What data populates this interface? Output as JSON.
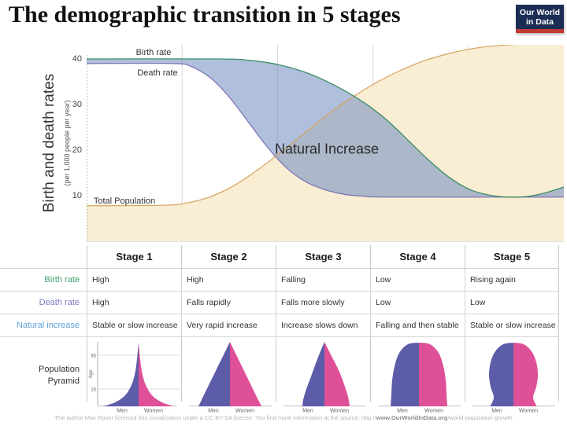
{
  "title": "The demographic transition in 5 stages",
  "logo": {
    "line1": "Our World",
    "line2": "in Data",
    "bg_color": "#1b2d54",
    "bar_color": "#c23b31"
  },
  "chart": {
    "ylabel": "Birth and death rates",
    "ylabel_sub": "(per 1,000 people per year)",
    "labels": {
      "birth": "Birth rate",
      "death": "Death rate",
      "population": "Total Population",
      "natural_increase": "Natural Increase"
    }
  },
  "chart_data": {
    "type": "area",
    "title": "The demographic transition in 5 stages",
    "xlabel": "",
    "ylabel": "Birth and death rates (per 1,000 people per year)",
    "x_domain": [
      0,
      100
    ],
    "stage_boundaries": [
      20,
      40,
      60,
      80
    ],
    "ylim": [
      0,
      43.5
    ],
    "yticks": [
      10,
      20,
      30,
      40
    ],
    "grid": "vertical-stage-dividers",
    "legend_position": "inline-labels",
    "series": [
      {
        "name": "Birth rate",
        "color": "#3b8e66",
        "points": [
          [
            0,
            40
          ],
          [
            28,
            40
          ],
          [
            34,
            39.7
          ],
          [
            40,
            38.8
          ],
          [
            46,
            37
          ],
          [
            52,
            34.2
          ],
          [
            58,
            30.5
          ],
          [
            63,
            26.5
          ],
          [
            68,
            21.5
          ],
          [
            72,
            17.5
          ],
          [
            76,
            14
          ],
          [
            80,
            11.5
          ],
          [
            84,
            10.2
          ],
          [
            88,
            9.7
          ],
          [
            92,
            9.8
          ],
          [
            96,
            10.6
          ],
          [
            100,
            11.9
          ]
        ]
      },
      {
        "name": "Death rate",
        "color": "#8077b5",
        "points": [
          [
            0,
            39
          ],
          [
            18,
            39
          ],
          [
            22,
            38.3
          ],
          [
            26,
            35.8
          ],
          [
            30,
            31.5
          ],
          [
            34,
            26
          ],
          [
            38,
            20.5
          ],
          [
            42,
            16
          ],
          [
            46,
            13
          ],
          [
            50,
            11.3
          ],
          [
            54,
            10.3
          ],
          [
            58,
            9.9
          ],
          [
            64,
            9.7
          ],
          [
            100,
            9.7
          ]
        ]
      },
      {
        "name": "Total Population",
        "color": "#d6a25e",
        "points": [
          [
            0,
            7.8
          ],
          [
            16,
            7.9
          ],
          [
            21,
            8.4
          ],
          [
            26,
            9.8
          ],
          [
            31,
            12.3
          ],
          [
            36,
            15.8
          ],
          [
            41,
            19.8
          ],
          [
            46,
            24
          ],
          [
            51,
            28.2
          ],
          [
            56,
            31.8
          ],
          [
            61,
            35
          ],
          [
            66,
            37.6
          ],
          [
            71,
            39.7
          ],
          [
            76,
            41.2
          ],
          [
            81,
            42.3
          ],
          [
            87,
            43
          ],
          [
            93,
            43.3
          ],
          [
            100,
            43.5
          ]
        ]
      }
    ],
    "fills": {
      "natural_increase_band": "rgba(110,138,192,0.55)",
      "population_area": "rgba(248,236,206,0.88)"
    },
    "annotation": "Natural Increase"
  },
  "table": {
    "stage_headers": [
      "Stage 1",
      "Stage 2",
      "Stage 3",
      "Stage 4",
      "Stage 5"
    ],
    "rows": [
      {
        "label": "Birth rate",
        "color": "#3da06b",
        "cells": [
          "High",
          "High",
          "Falling",
          "Low",
          "Rising again"
        ]
      },
      {
        "label": "Death rate",
        "color": "#7b7bc8",
        "cells": [
          "High",
          "Falls rapidly",
          "Falls more slowly",
          "Low",
          "Low"
        ]
      },
      {
        "label": "Natural increase",
        "color": "#5f9fd4",
        "cells": [
          "Stable or slow increase",
          "Very rapid increase",
          "Increase slows down",
          "Falling and then stable",
          "Stable or slow increase"
        ]
      }
    ],
    "pyramid_label_line1": "Population",
    "pyramid_label_line2": "Pyramid",
    "pyramid_colors": {
      "men": "#5c5ca8",
      "women": "#de5097"
    },
    "pyramids": [
      {
        "shape": "spike",
        "men": "Men",
        "women": "Women",
        "axis": {
          "top_tick": "65",
          "bottom_tick": "15",
          "label": "Age"
        }
      },
      {
        "shape": "triangle",
        "men": "Men",
        "women": "Women"
      },
      {
        "shape": "triangle-convex",
        "men": "Men",
        "women": "Women"
      },
      {
        "shape": "dome",
        "men": "Men",
        "women": "Women"
      },
      {
        "shape": "bulb",
        "men": "Men",
        "women": "Women"
      }
    ]
  },
  "footer": {
    "pre": "The author Max Roser licensed this visualisation under a CC-BY-SA license. You find more information at the source: http://",
    "bold": "www.OurWorldInData.org",
    "post": "/world-population-growth"
  }
}
